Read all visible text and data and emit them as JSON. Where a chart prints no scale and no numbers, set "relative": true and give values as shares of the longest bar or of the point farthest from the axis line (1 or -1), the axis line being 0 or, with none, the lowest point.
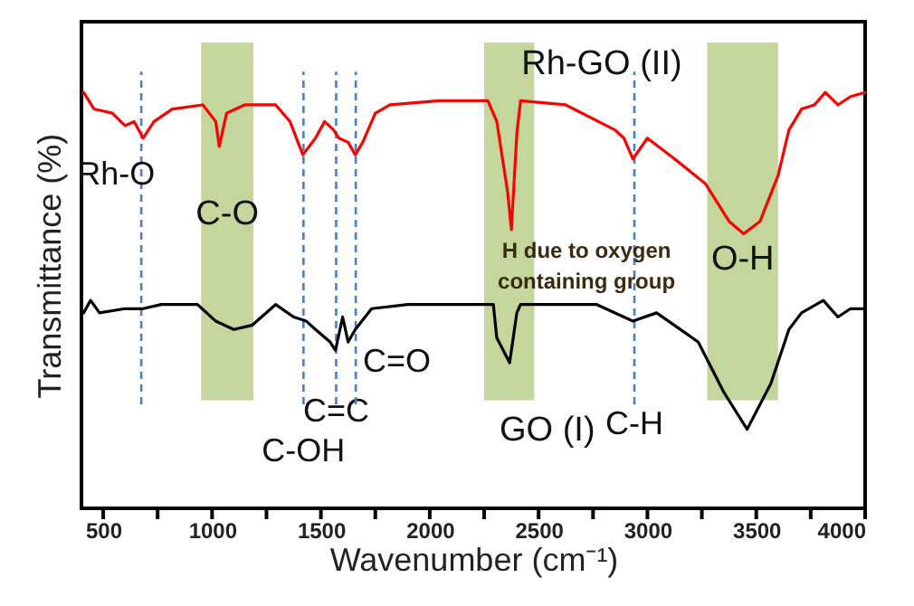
{
  "chart_data": {
    "type": "line",
    "relative": true,
    "xlabel": "Wavenumber (cm⁻¹)",
    "ylabel": "Transmittance (%)",
    "xlim": [
      400,
      4000
    ],
    "xticks": [
      500,
      {
        "value": 750,
        "label": null
      },
      1000,
      {
        "value": 1250,
        "label": null
      },
      1500,
      {
        "value": 1750,
        "label": null
      },
      2000,
      {
        "value": 2250,
        "label": null
      },
      2500,
      {
        "value": 2750,
        "label": null
      },
      3000,
      {
        "value": 3250,
        "label": null
      },
      3500,
      {
        "value": 3750,
        "label": null
      },
      4000
    ],
    "grid": false,
    "legend": false,
    "marker": "none",
    "line_style": "solid",
    "series": [
      {
        "name": "Rh-GO (II)",
        "color": "#ff0000",
        "x": [
          410,
          458,
          542,
          600,
          642,
          683,
          733,
          817,
          958,
          1017,
          1033,
          1067,
          1150,
          1292,
          1358,
          1417,
          1475,
          1517,
          1558,
          1583,
          1625,
          1658,
          1692,
          1750,
          1817,
          2042,
          2267,
          2308,
          2358,
          2375,
          2400,
          2417,
          2625,
          2850,
          2892,
          2933,
          3000,
          3125,
          3267,
          3375,
          3442,
          3517,
          3600,
          3650,
          3708,
          3767,
          3817,
          3875,
          3933,
          4000
        ],
        "values": [
          1.0,
          0.96,
          0.95,
          0.92,
          0.93,
          0.89,
          0.93,
          0.96,
          0.97,
          0.93,
          0.87,
          0.95,
          0.97,
          0.97,
          0.93,
          0.85,
          0.89,
          0.93,
          0.91,
          0.89,
          0.88,
          0.85,
          0.88,
          0.95,
          0.97,
          0.98,
          0.98,
          0.93,
          0.76,
          0.67,
          0.9,
          0.98,
          0.97,
          0.91,
          0.89,
          0.84,
          0.89,
          0.84,
          0.78,
          0.69,
          0.66,
          0.69,
          0.8,
          0.91,
          0.96,
          0.97,
          1.0,
          0.97,
          0.99,
          1.0
        ]
      },
      {
        "name": "GO (I)",
        "color": "#000000",
        "x": [
          410,
          442,
          483,
          600,
          683,
          767,
          933,
          1017,
          1100,
          1183,
          1292,
          1375,
          1433,
          1475,
          1542,
          1567,
          1600,
          1625,
          1658,
          1733,
          1900,
          2292,
          2308,
          2367,
          2400,
          2417,
          2767,
          2933,
          3042,
          3233,
          3350,
          3458,
          3567,
          3650,
          3708,
          3808,
          3875,
          3933,
          4000
        ],
        "values": [
          0.47,
          0.5,
          0.47,
          0.48,
          0.48,
          0.49,
          0.49,
          0.45,
          0.43,
          0.44,
          0.49,
          0.46,
          0.45,
          0.43,
          0.4,
          0.38,
          0.46,
          0.4,
          0.43,
          0.48,
          0.49,
          0.49,
          0.41,
          0.35,
          0.47,
          0.49,
          0.49,
          0.45,
          0.47,
          0.4,
          0.28,
          0.19,
          0.3,
          0.43,
          0.47,
          0.5,
          0.46,
          0.48,
          0.48
        ]
      }
    ],
    "ref_lines": [
      {
        "axis": "x",
        "value": 675,
        "label": "Rh-O",
        "color": "#4a7ec8",
        "line_style": "dashed"
      },
      {
        "axis": "x",
        "value": 1420,
        "label": "C-OH",
        "color": "#4a7ec8",
        "line_style": "dashed"
      },
      {
        "axis": "x",
        "value": 1570,
        "label": "C=C",
        "color": "#4a7ec8",
        "line_style": "dashed"
      },
      {
        "axis": "x",
        "value": 1660,
        "label": "C=O",
        "color": "#4a7ec8",
        "line_style": "dashed"
      },
      {
        "axis": "x",
        "value": 2940,
        "label": "C-H",
        "color": "#4a7ec8",
        "line_style": "dashed"
      }
    ],
    "bands": [
      {
        "axis": "x",
        "from": 950,
        "to": 1190,
        "label": "C-O",
        "color": "#c3d69b"
      },
      {
        "axis": "x",
        "from": 2250,
        "to": 2480,
        "label": null,
        "color": "#c3d69b"
      },
      {
        "axis": "x",
        "from": 3275,
        "to": 3600,
        "label": "O-H",
        "color": "#c3d69b"
      }
    ],
    "annotations": [
      "H due to oxygen\ncontaining group"
    ]
  }
}
